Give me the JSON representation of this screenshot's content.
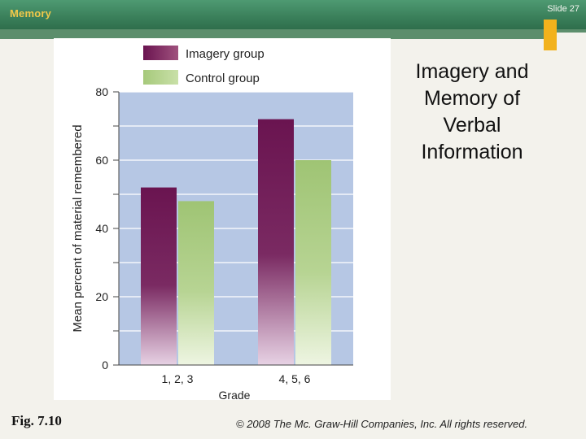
{
  "header": {
    "section": "Memory",
    "slide_number": "Slide 27"
  },
  "slide_title": "Imagery and Memory of Verbal Information",
  "figure_label": "Fig. 7.10",
  "copyright": "© 2008 The Mc. Graw-Hill Companies, Inc. All rights reserved.",
  "chart_data": {
    "type": "bar",
    "categories": [
      "1, 2, 3",
      "4, 5, 6"
    ],
    "series": [
      {
        "name": "Imagery group",
        "values": [
          52,
          72
        ],
        "color": "#6e1650"
      },
      {
        "name": "Control group",
        "values": [
          48,
          60
        ],
        "color": "#a9cb7e"
      }
    ],
    "xlabel": "Grade",
    "ylabel": "Mean percent of material remembered",
    "ylim": [
      0,
      80
    ],
    "yticks": [
      "0",
      "20",
      "40",
      "60",
      "80"
    ],
    "grid": true,
    "plot_background": "#b6c7e4",
    "legend": "top"
  }
}
